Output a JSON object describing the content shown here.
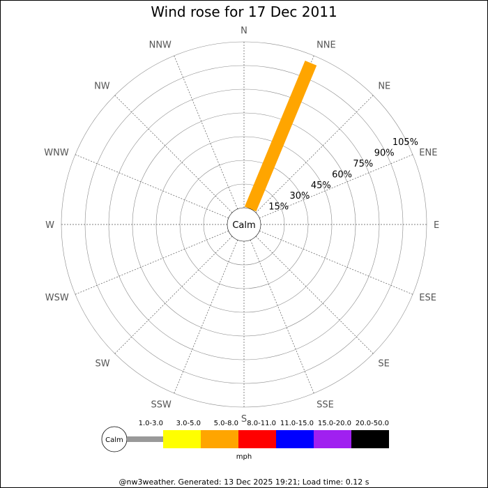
{
  "chart_data": {
    "type": "windrose",
    "title": "Wind rose for 17 Dec 2011",
    "directions": [
      "N",
      "NNE",
      "NE",
      "ENE",
      "E",
      "ESE",
      "SE",
      "SSE",
      "S",
      "SSW",
      "SW",
      "WSW",
      "W",
      "WNW",
      "NW",
      "NNW"
    ],
    "radial_ticks": [
      15,
      30,
      45,
      60,
      75,
      90,
      105
    ],
    "radial_tick_labels": [
      "15%",
      "30%",
      "45%",
      "60%",
      "75%",
      "90%",
      "105%"
    ],
    "r_max": 105,
    "calm_label": "Calm",
    "series": [
      {
        "direction": "NNE",
        "speed_bin": "5.0-8.0",
        "value": 100,
        "color": "#ffa500"
      }
    ],
    "legend": {
      "calm_label": "Calm",
      "unit": "mph",
      "bins": [
        {
          "label": "1.0-3.0",
          "color": "#999999"
        },
        {
          "label": "3.0-5.0",
          "color": "#ffff00"
        },
        {
          "label": "5.0-8.0",
          "color": "#ffa500"
        },
        {
          "label": "8.0-11.0",
          "color": "#ff0000"
        },
        {
          "label": "11.0-15.0",
          "color": "#0000ff"
        },
        {
          "label": "15.0-20.0",
          "color": "#a020f0"
        },
        {
          "label": "20.0-50.0",
          "color": "#000000"
        }
      ]
    }
  },
  "footer": "@nw3weather. Generated: 13 Dec 2025 19:21; Load time: 0.12 s"
}
